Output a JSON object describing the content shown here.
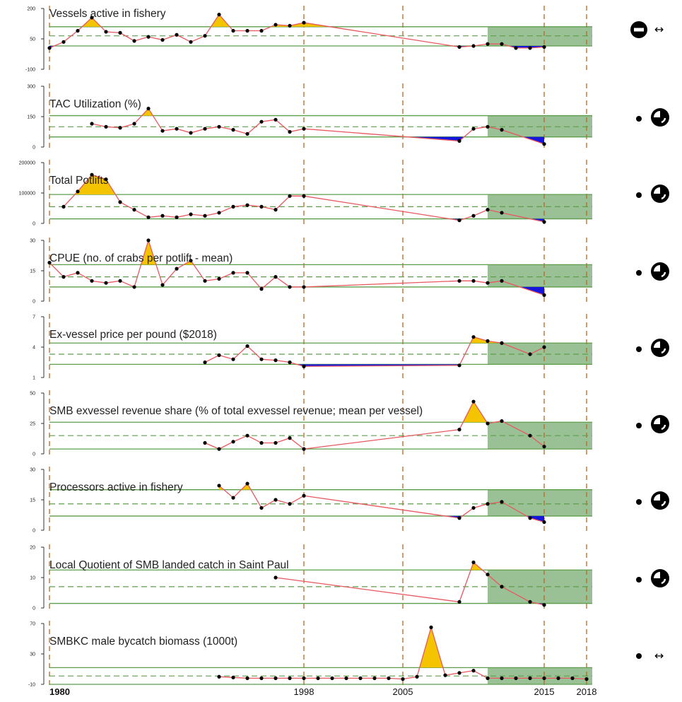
{
  "x_axis_years": [
    "1980",
    "1998",
    "2005",
    "2015",
    "2018"
  ],
  "colors": {
    "line": "#e8585f",
    "above_fill": "#f5c400",
    "below_fill": "#1515dd",
    "band_line": "#5e9e4b",
    "recent_shade": "#8fb98a",
    "vline": "#b56a26"
  },
  "chart_data": [
    {
      "type": "line",
      "title": "Vessels active in fishery",
      "ylim": [
        -100,
        200
      ],
      "yticks": [
        "-100",
        "50",
        "200"
      ],
      "band": [
        15,
        110
      ],
      "mean": 65,
      "indicator": "stable",
      "series": [
        {
          "x": [
            1980,
            1981,
            1982,
            1983,
            1984,
            1985,
            1986,
            1987,
            1988,
            1989,
            1990,
            1991,
            1992,
            1993,
            1994,
            1995,
            1996,
            1997,
            1998,
            2009,
            2010,
            2011,
            2012,
            2013,
            2014,
            2015
          ],
          "y": [
            5,
            35,
            90,
            155,
            85,
            80,
            40,
            60,
            45,
            70,
            35,
            65,
            170,
            90,
            90,
            90,
            120,
            115,
            130,
            10,
            15,
            25,
            25,
            5,
            5,
            10
          ]
        }
      ]
    },
    {
      "type": "line",
      "title": "TAC Utilization (%)",
      "ylim": [
        0,
        300
      ],
      "yticks": [
        "0",
        "150",
        "300"
      ],
      "band": [
        50,
        155
      ],
      "mean": 100,
      "indicator": "decreasing",
      "series": [
        {
          "x": [
            1983,
            1984,
            1985,
            1986,
            1987,
            1988,
            1989,
            1990,
            1991,
            1992,
            1993,
            1994,
            1995,
            1996,
            1997,
            1998,
            2009,
            2010,
            2011,
            2012,
            2015
          ],
          "y": [
            115,
            100,
            95,
            115,
            190,
            80,
            90,
            70,
            90,
            100,
            85,
            65,
            125,
            135,
            75,
            90,
            30,
            90,
            100,
            85,
            15
          ]
        }
      ]
    },
    {
      "type": "line",
      "title": "Total Potlifts",
      "ylim": [
        0,
        200000
      ],
      "yticks": [
        "0",
        "100000",
        "200000"
      ],
      "band": [
        15000,
        95000
      ],
      "mean": 55000,
      "indicator": "decreasing",
      "series": [
        {
          "x": [
            1981,
            1982,
            1983,
            1984,
            1985,
            1986,
            1987,
            1988,
            1989,
            1990,
            1991,
            1992,
            1993,
            1994,
            1995,
            1996,
            1997,
            1998,
            2009,
            2010,
            2011,
            2012,
            2015
          ],
          "y": [
            55000,
            105000,
            160000,
            145000,
            70000,
            45000,
            20000,
            25000,
            20000,
            30000,
            25000,
            35000,
            55000,
            60000,
            55000,
            45000,
            90000,
            90000,
            10000,
            25000,
            45000,
            35000,
            5000
          ]
        }
      ]
    },
    {
      "type": "line",
      "title": "CPUE (no. of crabs per potlift - mean)",
      "ylim": [
        0,
        30
      ],
      "yticks": [
        "0",
        "15",
        "30"
      ],
      "band": [
        7,
        18
      ],
      "mean": 12,
      "indicator": "decreasing",
      "series": [
        {
          "x": [
            1980,
            1981,
            1982,
            1983,
            1984,
            1985,
            1986,
            1987,
            1988,
            1989,
            1990,
            1991,
            1992,
            1993,
            1994,
            1995,
            1996,
            1997,
            1998,
            2009,
            2010,
            2011,
            2012,
            2015
          ],
          "y": [
            19,
            12,
            14,
            10,
            9,
            10,
            7,
            30,
            8,
            16,
            20,
            10,
            11,
            14,
            14,
            6,
            12,
            7,
            7,
            10,
            10,
            9,
            10,
            3
          ]
        }
      ]
    },
    {
      "type": "line",
      "title": "Ex-vessel price per pound ($2018)",
      "ylim": [
        1,
        7
      ],
      "yticks": [
        "1",
        "4",
        "7"
      ],
      "band": [
        2.3,
        4.4
      ],
      "mean": 3.3,
      "indicator": "decreasing",
      "series": [
        {
          "x": [
            1991,
            1992,
            1993,
            1994,
            1995,
            1996,
            1997,
            1998,
            2009,
            2010,
            2011,
            2012,
            2014,
            2015
          ],
          "y": [
            2.5,
            3.2,
            2.8,
            4.1,
            2.8,
            2.7,
            2.5,
            2.1,
            2.2,
            5.0,
            4.6,
            4.4,
            3.3,
            4.0
          ]
        }
      ]
    },
    {
      "type": "line",
      "title": "SMB exvessel revenue share (% of total exvessel revenue; mean per vessel)",
      "ylim": [
        0,
        50
      ],
      "yticks": [
        "0",
        "25",
        "50"
      ],
      "band": [
        4,
        26
      ],
      "mean": 15,
      "indicator": "decreasing",
      "series": [
        {
          "x": [
            1991,
            1992,
            1993,
            1994,
            1995,
            1996,
            1997,
            1998,
            2009,
            2010,
            2011,
            2012,
            2014,
            2015
          ],
          "y": [
            9,
            4,
            10,
            15,
            9,
            9,
            13,
            4,
            20,
            43,
            25,
            27,
            15,
            6
          ]
        }
      ]
    },
    {
      "type": "line",
      "title": "Processors active in fishery",
      "ylim": [
        0,
        30
      ],
      "yticks": [
        "0",
        "15",
        "30"
      ],
      "band": [
        7,
        20
      ],
      "mean": 13,
      "indicator": "decreasing",
      "series": [
        {
          "x": [
            1992,
            1993,
            1994,
            1995,
            1996,
            1997,
            1998,
            2009,
            2010,
            2011,
            2012,
            2014,
            2015
          ],
          "y": [
            22,
            16,
            23,
            11,
            15,
            13,
            17,
            6,
            11,
            13,
            14,
            6,
            4
          ]
        }
      ]
    },
    {
      "type": "line",
      "title": "Local Quotient of SMB landed catch in Saint Paul",
      "ylim": [
        0,
        20
      ],
      "yticks": [
        "0",
        "10",
        "20"
      ],
      "band": [
        1.5,
        12.5
      ],
      "mean": 7,
      "indicator": "decreasing",
      "series": [
        {
          "x": [
            1996,
            2009,
            2010,
            2011,
            2012,
            2014,
            2015
          ],
          "y": [
            10,
            2,
            15,
            11,
            7,
            2,
            1
          ]
        }
      ]
    },
    {
      "type": "line",
      "title": "SMBKC male bycatch biomass (1000t)",
      "ylim": [
        -10,
        70
      ],
      "yticks": [
        "-10",
        "30",
        "70"
      ],
      "band": [
        -10,
        12
      ],
      "mean": 1,
      "indicator": "stable",
      "series": [
        {
          "x": [
            1992,
            1993,
            1994,
            1995,
            1996,
            1997,
            1998,
            1999,
            2000,
            2001,
            2002,
            2003,
            2004,
            2005,
            2006,
            2007,
            2008,
            2009,
            2010,
            2011,
            2012,
            2013,
            2014,
            2015,
            2016,
            2017,
            2018
          ],
          "y": [
            0,
            -1,
            -2,
            -2,
            -2,
            -2,
            -2,
            -2,
            -2,
            -2,
            -2,
            -2,
            -2,
            -3,
            0,
            65,
            2,
            5,
            8,
            -2,
            -2,
            -2,
            -2,
            -2,
            -2,
            -2,
            -3
          ]
        }
      ]
    }
  ]
}
